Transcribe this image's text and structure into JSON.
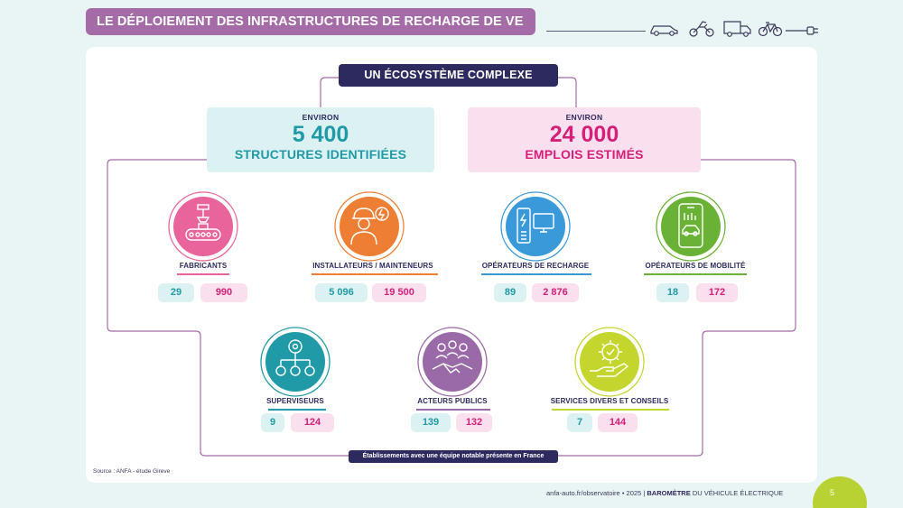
{
  "header": {
    "title": "LE DÉPLOIEMENT DES INFRASTRUCTURES DE RECHARGE DE VE",
    "vehicle_icons": [
      "car-icon",
      "motorcycle-icon",
      "truck-icon",
      "bicycle-icon",
      "plug-icon"
    ]
  },
  "main": {
    "ecosystem_title": "UN ÉCOSYSTÈME COMPLEXE",
    "structures": {
      "prefix": "ENVIRON",
      "value": "5 400",
      "label": "STRUCTURES IDENTIFIÉES"
    },
    "employment": {
      "prefix": "ENVIRON",
      "value": "24 000",
      "label": "EMPLOIS ESTIMÉS"
    }
  },
  "categories": [
    {
      "label": "FABRICANTS",
      "structures": "29",
      "jobs": "990",
      "color": "#e9649a",
      "icon": "factory-conveyor-icon"
    },
    {
      "label": "INSTALLATEURS / MAINTENEURS",
      "structures": "5 096",
      "jobs": "19 500",
      "color": "#ee7e33",
      "icon": "worker-icon"
    },
    {
      "label": "OPÉRATEURS DE RECHARGE",
      "structures": "89",
      "jobs": "2 876",
      "color": "#3a9ad9",
      "icon": "charging-station-icon"
    },
    {
      "label": "OPÉRATEURS DE MOBILITÉ",
      "structures": "18",
      "jobs": "172",
      "color": "#6ab235",
      "icon": "mobile-app-icon"
    },
    {
      "label": "SUPERVISEURS",
      "structures": "9",
      "jobs": "124",
      "color": "#1f9aa6",
      "icon": "hierarchy-icon"
    },
    {
      "label": "ACTEURS PUBLICS",
      "structures": "139",
      "jobs": "132",
      "color": "#9a6aa8",
      "icon": "handshake-icon"
    },
    {
      "label": "SERVICES DIVERS ET CONSEILS",
      "structures": "7",
      "jobs": "144",
      "color": "#c4d52d",
      "icon": "gear-hand-icon"
    }
  ],
  "note": "Établissements avec une équipe notable présente en France",
  "source": "Source : ANFA - étude Gireve",
  "footer": {
    "url": "anfa-auto.fr/observatoire",
    "separator": "•",
    "year": "2025",
    "pipe": "|",
    "barometer": "BAROMÈTRE",
    "subtitle": "DU VÉHICULE ÉLECTRIQUE",
    "page": "5"
  },
  "colors": {
    "teal": "#1f9aa6",
    "pink": "#d51f78",
    "navy": "#2d2a5f",
    "purple": "#a56ba7",
    "lime": "#b8d233"
  }
}
